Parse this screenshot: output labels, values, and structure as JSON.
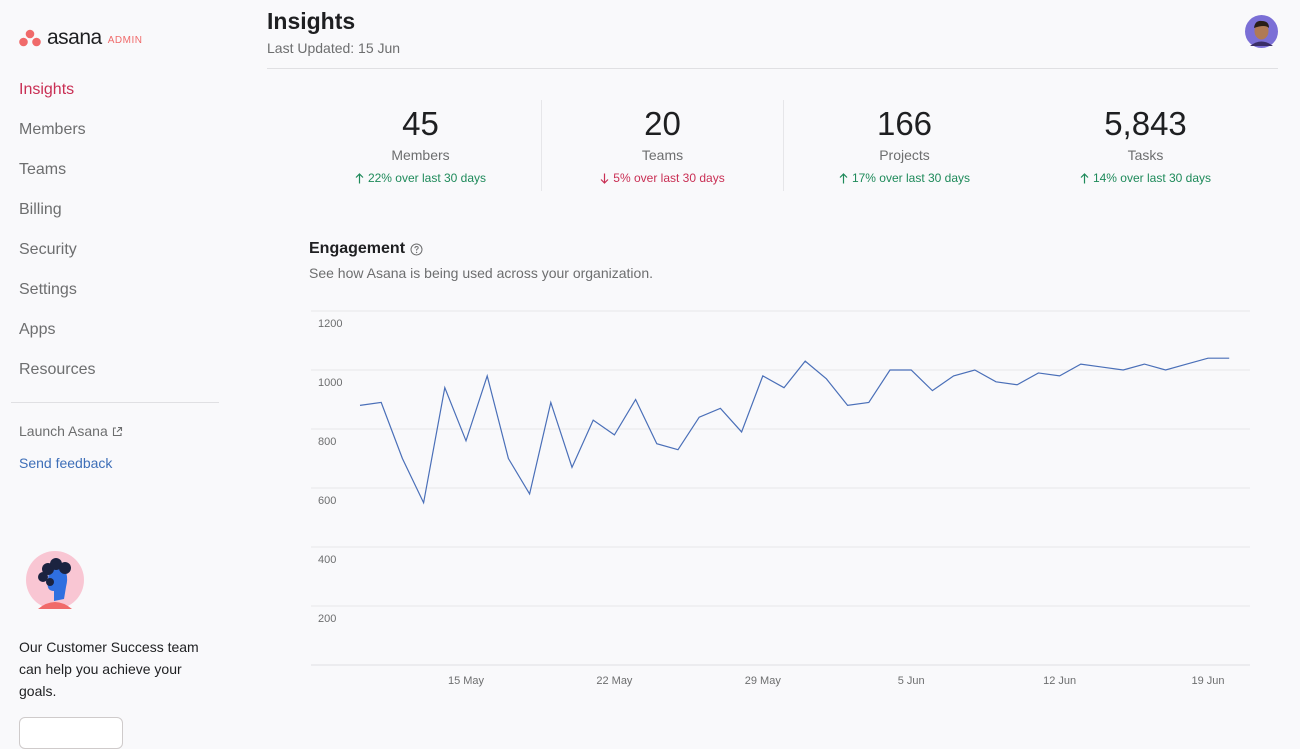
{
  "sidebar": {
    "logo": "asana",
    "badge": "ADMIN",
    "nav": [
      "Insights",
      "Members",
      "Teams",
      "Billing",
      "Security",
      "Settings",
      "Apps",
      "Resources"
    ],
    "active": 0,
    "launch": "Launch Asana",
    "feedback": "Send feedback",
    "help_text": "Our Customer Success team can help you achieve your goals."
  },
  "header": {
    "title": "Insights",
    "subtitle": "Last Updated: 15 Jun"
  },
  "stats": [
    {
      "value": "45",
      "label": "Members",
      "change": "22% over last 30 days",
      "trend": "up"
    },
    {
      "value": "20",
      "label": "Teams",
      "change": "5% over last 30 days",
      "trend": "down"
    },
    {
      "value": "166",
      "label": "Projects",
      "change": "17% over last 30 days",
      "trend": "up"
    },
    {
      "value": "5,843",
      "label": "Tasks",
      "change": "14% over last 30 days",
      "trend": "up"
    }
  ],
  "chart_data": {
    "type": "line",
    "title": "Engagement",
    "subtitle": "See how Asana is being used across your organization.",
    "categories": [
      null,
      null,
      null,
      null,
      null,
      "15 May",
      null,
      null,
      null,
      null,
      null,
      null,
      "22 May",
      null,
      null,
      null,
      null,
      null,
      null,
      "29 May",
      null,
      null,
      null,
      null,
      null,
      null,
      "5 Jun",
      null,
      null,
      null,
      null,
      null,
      null,
      "12 Jun",
      null,
      null,
      null,
      null,
      null,
      null,
      "19 Jun",
      null
    ],
    "series": [
      {
        "color": "#4a6fb8",
        "values": [
          880,
          890,
          700,
          550,
          940,
          760,
          980,
          700,
          580,
          890,
          670,
          830,
          780,
          900,
          750,
          730,
          840,
          870,
          790,
          980,
          940,
          1030,
          970,
          880,
          890,
          1000,
          1000,
          930,
          980,
          1000,
          960,
          950,
          990,
          980,
          1020,
          1010,
          1000,
          1020,
          1000,
          1020,
          1040,
          1040
        ]
      }
    ],
    "ylim": [
      0,
      1200
    ],
    "yticks": [
      200,
      400,
      600,
      800,
      1000,
      1200
    ],
    "grid": true
  }
}
